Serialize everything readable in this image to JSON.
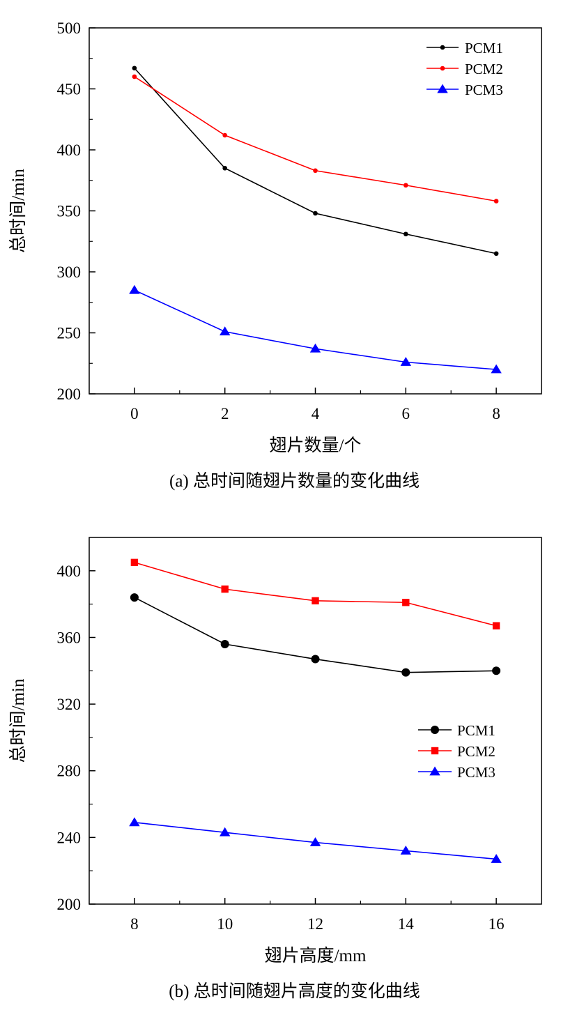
{
  "chart_data": [
    {
      "type": "line",
      "caption": "(a)  总时间随翅片数量的变化曲线",
      "xlabel": "翅片数量/个",
      "ylabel": "总时间/min",
      "x": [
        0,
        2,
        4,
        6,
        8
      ],
      "x_ticks": [
        "0",
        "2",
        "4",
        "6",
        "8"
      ],
      "y_ticks": [
        "200",
        "250",
        "300",
        "350",
        "400",
        "450",
        "500"
      ],
      "xlim": [
        -1,
        9
      ],
      "ylim": [
        200,
        500
      ],
      "grid": false,
      "legend_position": "top-right",
      "series": [
        {
          "name": "PCM1",
          "color": "#000000",
          "marker": "small-circle",
          "values": [
            467,
            385,
            348,
            331,
            315
          ]
        },
        {
          "name": "PCM2",
          "color": "#ff0000",
          "marker": "small-circle",
          "values": [
            460,
            412,
            383,
            371,
            358
          ]
        },
        {
          "name": "PCM3",
          "color": "#0000ff",
          "marker": "triangle",
          "values": [
            285,
            251,
            237,
            226,
            220
          ]
        }
      ]
    },
    {
      "type": "line",
      "caption": "(b)  总时间随翅片高度的变化曲线",
      "xlabel": "翅片高度/mm",
      "ylabel": "总时间/min",
      "x": [
        8,
        10,
        12,
        14,
        16
      ],
      "x_ticks": [
        "8",
        "10",
        "12",
        "14",
        "16"
      ],
      "y_ticks": [
        "200",
        "240",
        "280",
        "320",
        "360",
        "400"
      ],
      "xlim": [
        7,
        17
      ],
      "ylim": [
        200,
        420
      ],
      "grid": false,
      "legend_position": "center-right",
      "series": [
        {
          "name": "PCM1",
          "color": "#000000",
          "marker": "circle",
          "values": [
            384,
            356,
            347,
            339,
            340
          ]
        },
        {
          "name": "PCM2",
          "color": "#ff0000",
          "marker": "square",
          "values": [
            405,
            389,
            382,
            381,
            367
          ]
        },
        {
          "name": "PCM3",
          "color": "#0000ff",
          "marker": "triangle",
          "values": [
            249,
            243,
            237,
            232,
            227
          ]
        }
      ]
    }
  ]
}
